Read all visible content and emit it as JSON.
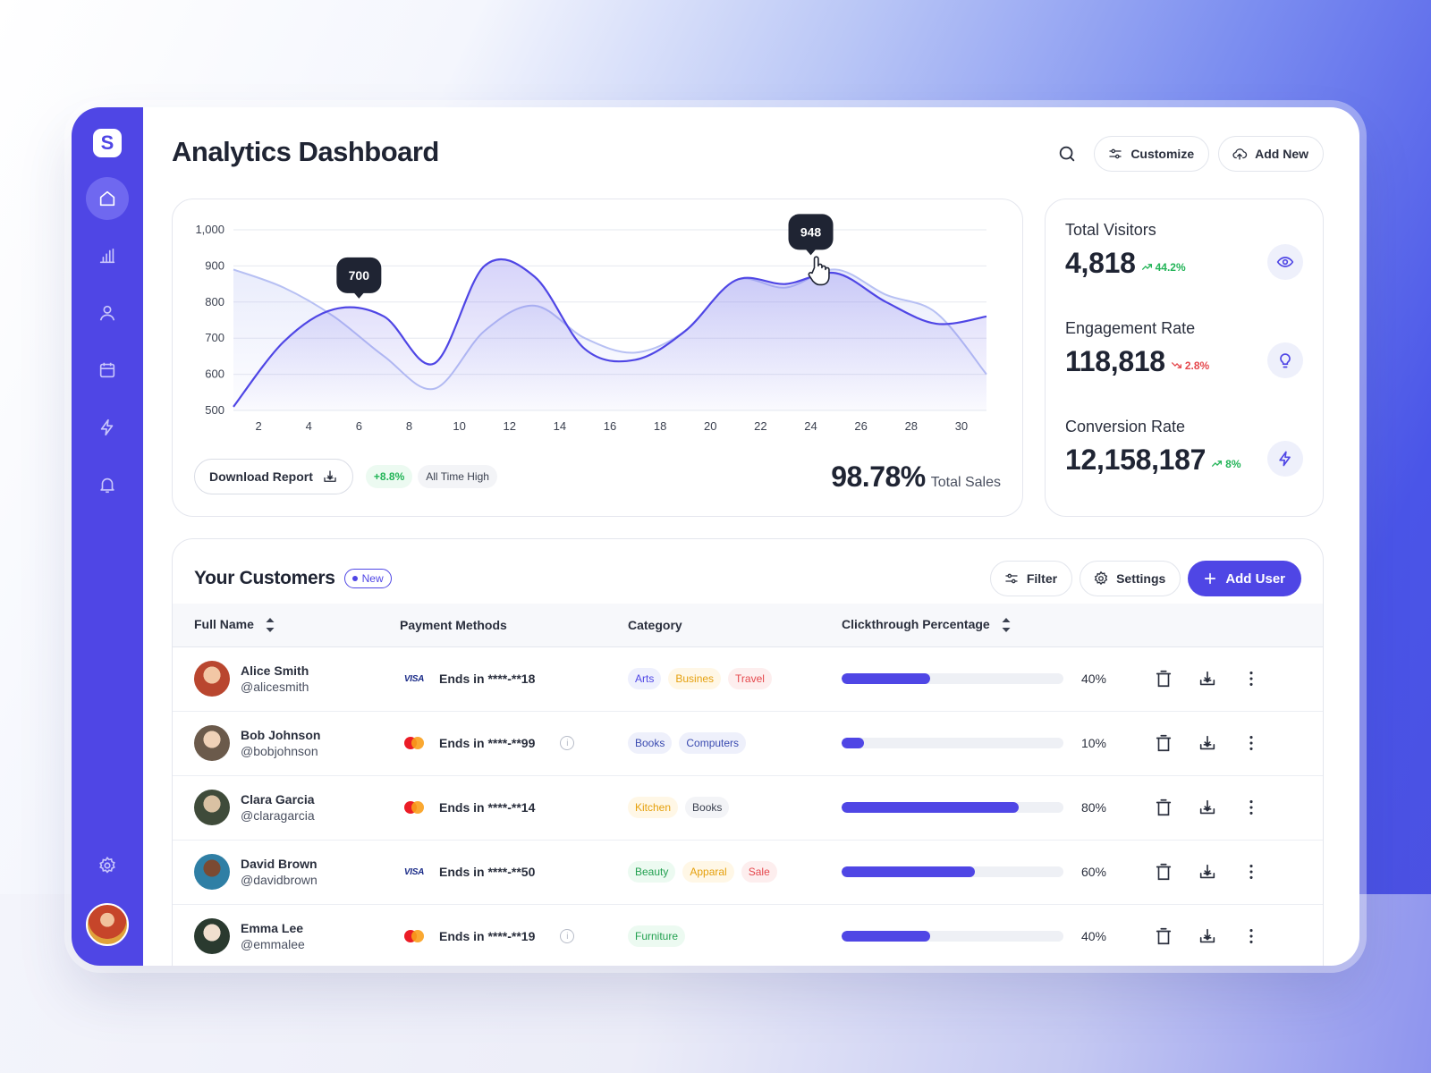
{
  "colors": {
    "accent": "#4f46e5",
    "positive": "#22b457",
    "negative": "#e5484d"
  },
  "sidebar": {
    "logo_letter": "S",
    "items": [
      {
        "icon": "home-icon",
        "active": true
      },
      {
        "icon": "bar-chart-icon",
        "active": false
      },
      {
        "icon": "user-icon",
        "active": false
      },
      {
        "icon": "calendar-icon",
        "active": false
      },
      {
        "icon": "lightning-icon",
        "active": false
      },
      {
        "icon": "bell-icon",
        "active": false
      }
    ],
    "bottom": [
      {
        "icon": "gear-icon"
      },
      {
        "icon": "user-avatar"
      }
    ]
  },
  "header": {
    "title": "Analytics Dashboard",
    "customize_label": "Customize",
    "add_new_label": "Add New"
  },
  "chart_data": {
    "type": "area",
    "x": [
      1,
      3,
      5,
      7,
      9,
      11,
      13,
      15,
      17,
      19,
      21,
      23,
      25,
      27,
      29,
      31
    ],
    "yticks": [
      "1,000",
      "900",
      "800",
      "700",
      "600",
      "500"
    ],
    "xticks": [
      "2",
      "4",
      "6",
      "8",
      "10",
      "12",
      "14",
      "16",
      "18",
      "20",
      "22",
      "24",
      "26",
      "28",
      "30"
    ],
    "ylim": [
      500,
      1000
    ],
    "xlim": [
      1,
      31
    ],
    "series": [
      {
        "values": [
          510,
          690,
          780,
          760,
          630,
          900,
          870,
          670,
          640,
          720,
          860,
          850,
          880,
          800,
          740,
          760
        ]
      },
      {
        "values": [
          890,
          840,
          760,
          650,
          560,
          720,
          790,
          700,
          660,
          720,
          860,
          840,
          890,
          820,
          770,
          600
        ]
      }
    ],
    "callouts": [
      {
        "x": 6,
        "y": 780,
        "label": "700"
      },
      {
        "x": 24,
        "y": 900,
        "label": "948"
      }
    ],
    "grid": true
  },
  "chart_footer": {
    "download_label": "Download Report",
    "change_chip": "+8.8%",
    "status_chip": "All Time High",
    "total_value": "98.78%",
    "total_label": "Total Sales"
  },
  "stats": [
    {
      "label": "Total Visitors",
      "value": "4,818",
      "trend": "44.2%",
      "direction": "up",
      "icon": "eye-icon"
    },
    {
      "label": "Engagement Rate",
      "value": "118,818",
      "trend": "2.8%",
      "direction": "down",
      "icon": "lightbulb-icon"
    },
    {
      "label": "Conversion Rate",
      "value": "12,158,187",
      "trend": "8%",
      "direction": "up",
      "icon": "lightning-icon"
    }
  ],
  "customers": {
    "title": "Your Customers",
    "badge": "New",
    "filter_label": "Filter",
    "settings_label": "Settings",
    "add_user_label": "Add User",
    "columns": {
      "name": "Full Name",
      "payment": "Payment Methods",
      "category": "Category",
      "clickthrough": "Clickthrough Percentage"
    },
    "rows": [
      {
        "name": "Alice Smith",
        "handle": "@alicesmith",
        "card": "visa",
        "card_label": "VISA",
        "ends": "Ends in ****-**18",
        "info": false,
        "tags": [
          {
            "text": "Arts",
            "color": "#4f46e5",
            "bg": "#eef0fd"
          },
          {
            "text": "Busines",
            "color": "#e5a00d",
            "bg": "#fff7e6"
          },
          {
            "text": "Travel",
            "color": "#e5484d",
            "bg": "#fdeeee"
          }
        ],
        "percent": 0.4,
        "percent_label": "40%"
      },
      {
        "name": "Bob Johnson",
        "handle": "@bobjohnson",
        "card": "mastercard",
        "card_label": "",
        "ends": "Ends in ****-**99",
        "info": true,
        "tags": [
          {
            "text": "Books",
            "color": "#3b4bb0",
            "bg": "#eef0fb"
          },
          {
            "text": "Computers",
            "color": "#3b4bb0",
            "bg": "#eef0fb"
          }
        ],
        "percent": 0.1,
        "percent_label": "10%"
      },
      {
        "name": "Clara Garcia",
        "handle": "@claragarcia",
        "card": "mastercard",
        "card_label": "",
        "ends": "Ends in ****-**14",
        "info": false,
        "tags": [
          {
            "text": "Kitchen",
            "color": "#e5a00d",
            "bg": "#fff7e6"
          },
          {
            "text": "Books",
            "color": "#3b4150",
            "bg": "#f3f4f7"
          }
        ],
        "percent": 0.8,
        "percent_label": "80%"
      },
      {
        "name": "David Brown",
        "handle": "@davidbrown",
        "card": "visa",
        "card_label": "VISA",
        "ends": "Ends in ****-**50",
        "info": false,
        "tags": [
          {
            "text": "Beauty",
            "color": "#22a050",
            "bg": "#ecfaf1"
          },
          {
            "text": "Apparal",
            "color": "#e5a00d",
            "bg": "#fff7e6"
          },
          {
            "text": "Sale",
            "color": "#e5484d",
            "bg": "#fdeeee"
          }
        ],
        "percent": 0.6,
        "percent_label": "60%"
      },
      {
        "name": "Emma Lee",
        "handle": "@emmalee",
        "card": "mastercard",
        "card_label": "",
        "ends": "Ends in ****-**19",
        "info": true,
        "tags": [
          {
            "text": "Furniture",
            "color": "#22a050",
            "bg": "#ecfaf1"
          }
        ],
        "percent": 0.4,
        "percent_label": "40%"
      }
    ]
  }
}
